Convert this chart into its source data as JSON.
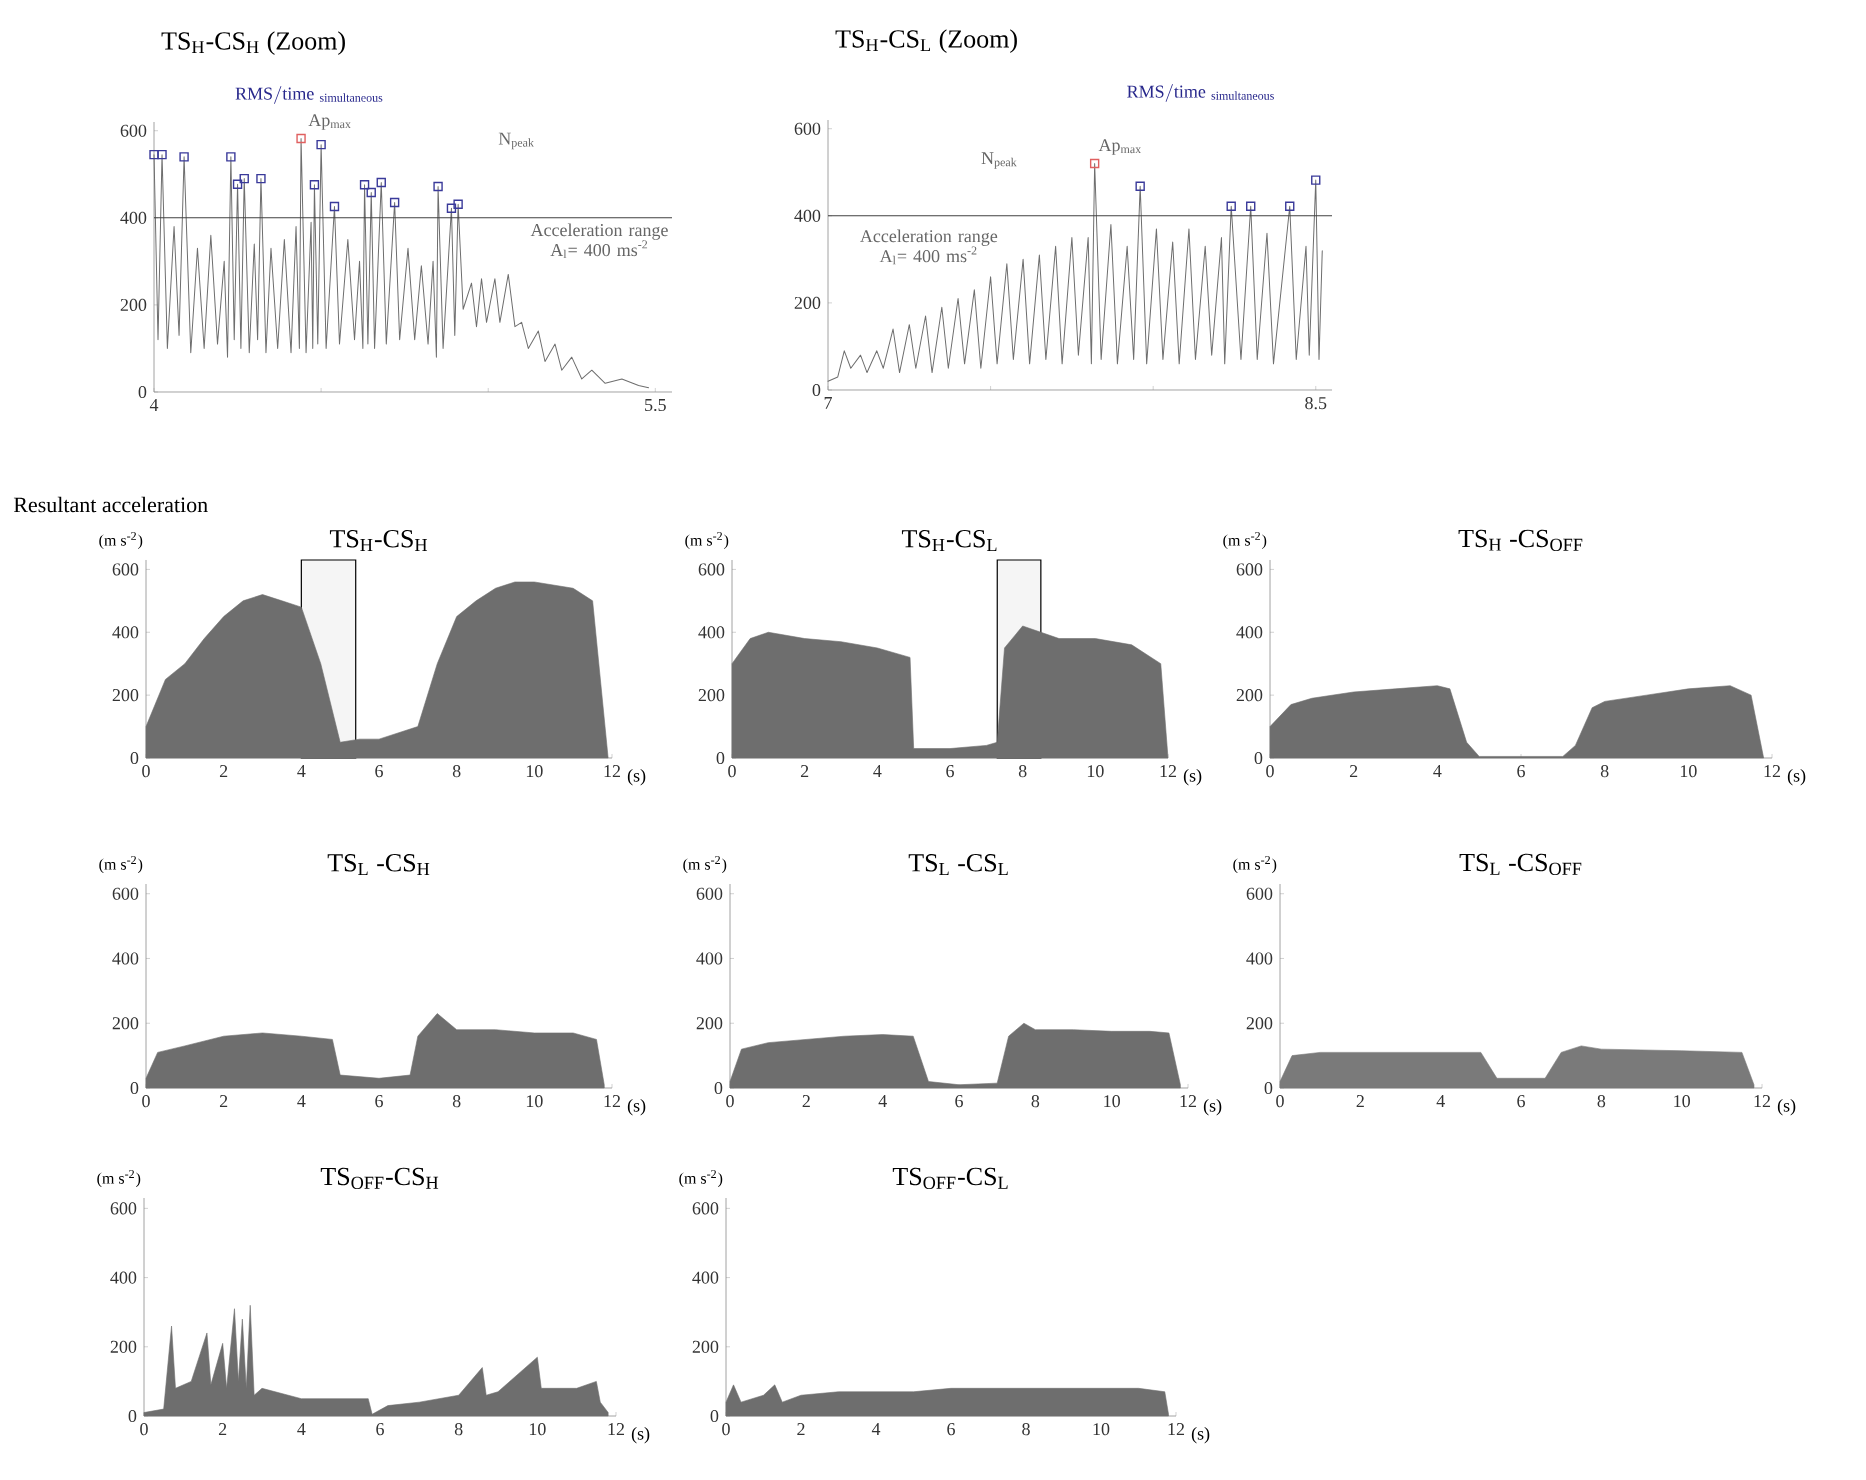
{
  "chart_data": [
    {
      "type": "line",
      "title": "TS$_{H}$-CS$_{H}$ (Zoom)",
      "xlim": [
        4,
        5.55
      ],
      "ylim": [
        0,
        620
      ],
      "xticks": [
        4,
        {
          "value": 4.5,
          "label": null
        },
        {
          "value": 5,
          "label": null
        },
        5.5
      ],
      "yticks": [
        0,
        200,
        400,
        600
      ],
      "ref_lines": [
        {
          "axis": "y",
          "value": 400,
          "color": "#404040"
        }
      ],
      "annotations": [
        "\\mathrm{RMS/time}\\;_{\\mathrm{simultaneous}}",
        "Ap$_{max}$",
        "N$_{peak}$",
        "Acceleration range A$_{l}$= 400 ms$^{-2}$"
      ],
      "series": [
        {
          "type": "line",
          "color": "#6e6e6e",
          "x": [
            4.0,
            4.012,
            4.024,
            4.04,
            4.06,
            4.075,
            4.09,
            4.11,
            4.13,
            4.15,
            4.17,
            4.19,
            4.21,
            4.22,
            4.23,
            4.24,
            4.25,
            4.26,
            4.27,
            4.285,
            4.3,
            4.31,
            4.32,
            4.335,
            4.35,
            4.37,
            4.39,
            4.41,
            4.425,
            4.435,
            4.44,
            4.455,
            4.47,
            4.475,
            4.48,
            4.49,
            4.5,
            4.515,
            4.54,
            4.555,
            4.58,
            4.6,
            4.615,
            4.625,
            4.63,
            4.64,
            4.65,
            4.66,
            4.68,
            4.695,
            4.72,
            4.735,
            4.76,
            4.78,
            4.8,
            4.82,
            4.835,
            4.845,
            4.85,
            4.865,
            4.89,
            4.9,
            4.91,
            4.925,
            4.95,
            4.965,
            4.98,
            4.995,
            5.02,
            5.035,
            5.06,
            5.08,
            5.1,
            5.12,
            5.15,
            5.17,
            5.2,
            5.22,
            5.25,
            5.28,
            5.31,
            5.35,
            5.4,
            5.45,
            5.48
          ],
          "values": [
            545,
            120,
            545,
            100,
            380,
            130,
            540,
            90,
            330,
            100,
            360,
            110,
            300,
            80,
            540,
            120,
            477,
            100,
            490,
            90,
            340,
            120,
            490,
            90,
            330,
            100,
            350,
            90,
            380,
            100,
            582,
            90,
            390,
            100,
            476,
            110,
            568,
            100,
            426,
            110,
            350,
            120,
            300,
            100,
            476,
            110,
            458,
            100,
            481,
            110,
            435,
            120,
            330,
            120,
            290,
            110,
            300,
            80,
            472,
            100,
            422,
            130,
            431,
            190,
            250,
            150,
            260,
            160,
            260,
            160,
            270,
            150,
            160,
            100,
            140,
            70,
            110,
            50,
            80,
            30,
            50,
            20,
            30,
            15,
            10
          ]
        },
        {
          "type": "scatter",
          "marker": "square",
          "color": "#3a3a9a",
          "x": [
            4.0,
            4.024,
            4.09,
            4.23,
            4.25,
            4.27,
            4.32,
            4.48,
            4.5,
            4.54,
            4.63,
            4.65,
            4.68,
            4.72,
            4.85,
            4.89,
            4.91
          ],
          "values": [
            545,
            545,
            540,
            540,
            477,
            490,
            490,
            476,
            568,
            426,
            476,
            458,
            481,
            435,
            472,
            422,
            431
          ]
        },
        {
          "type": "scatter",
          "marker": "square",
          "color": "#e06060",
          "x": [
            4.44
          ],
          "values": [
            582
          ]
        }
      ]
    },
    {
      "type": "line",
      "title": "TS$_{H}$-CS$_{L}$ (Zoom)",
      "xlim": [
        7,
        8.55
      ],
      "ylim": [
        0,
        620
      ],
      "xticks": [
        7,
        {
          "value": 7.5,
          "label": null
        },
        {
          "value": 8,
          "label": null
        },
        8.5
      ],
      "yticks": [
        0,
        200,
        400,
        600
      ],
      "ref_lines": [
        {
          "axis": "y",
          "value": 400,
          "color": "#404040"
        }
      ],
      "annotations": [
        "\\mathrm{RMS/time}\\;_{\\mathrm{simultaneous}}",
        "Ap$_{max}$",
        "N$_{peak}$",
        "Acceleration range A$_{l}$= 400 ms$^{-2}$"
      ],
      "series": [
        {
          "type": "line",
          "color": "#6e6e6e",
          "x": [
            7.0,
            7.03,
            7.05,
            7.07,
            7.1,
            7.12,
            7.15,
            7.17,
            7.2,
            7.22,
            7.25,
            7.27,
            7.3,
            7.32,
            7.35,
            7.37,
            7.4,
            7.42,
            7.45,
            7.47,
            7.5,
            7.52,
            7.55,
            7.57,
            7.6,
            7.62,
            7.65,
            7.67,
            7.7,
            7.72,
            7.75,
            7.77,
            7.8,
            7.81,
            7.82,
            7.84,
            7.87,
            7.89,
            7.92,
            7.94,
            7.96,
            7.98,
            8.01,
            8.03,
            8.06,
            8.08,
            8.11,
            8.13,
            8.16,
            8.18,
            8.21,
            8.22,
            8.24,
            8.27,
            8.3,
            8.32,
            8.35,
            8.37,
            8.42,
            8.44,
            8.47,
            8.48,
            8.5,
            8.51,
            8.52
          ],
          "values": [
            20,
            30,
            90,
            50,
            80,
            40,
            90,
            50,
            140,
            40,
            150,
            50,
            170,
            40,
            190,
            50,
            210,
            60,
            230,
            50,
            260,
            60,
            290,
            70,
            300,
            60,
            310,
            70,
            330,
            60,
            350,
            80,
            350,
            60,
            520,
            70,
            380,
            60,
            330,
            70,
            468,
            60,
            370,
            70,
            340,
            60,
            370,
            70,
            330,
            80,
            350,
            60,
            422,
            70,
            422,
            70,
            360,
            60,
            422,
            70,
            330,
            80,
            482,
            70,
            320
          ]
        },
        {
          "type": "scatter",
          "marker": "square",
          "color": "#3a3a9a",
          "x": [
            7.96,
            8.24,
            8.3,
            8.42,
            8.5
          ],
          "values": [
            468,
            422,
            422,
            422,
            482
          ]
        },
        {
          "type": "scatter",
          "marker": "square",
          "color": "#e06060",
          "x": [
            7.82
          ],
          "values": [
            520
          ]
        }
      ]
    },
    {
      "type": "area",
      "title": "TS$_{H}$-CS$_{H}$",
      "xlabel": "(s)",
      "ylabel": "(m s$^{-2}$)",
      "xlim": [
        0,
        12
      ],
      "ylim": [
        0,
        630
      ],
      "xticks": [
        0,
        2,
        4,
        6,
        8,
        10,
        12
      ],
      "yticks": [
        0,
        200,
        400,
        600
      ],
      "annotations": [
        "Resultant acceleration"
      ],
      "bands": [
        {
          "axis": "x",
          "from": 4,
          "to": 5.4,
          "color": "#000000"
        }
      ],
      "series": [
        {
          "color": "#6e6e6e",
          "x": [
            0,
            0.5,
            1,
            1.5,
            2,
            2.5,
            3,
            3.5,
            4,
            4.5,
            5,
            5.5,
            6,
            6.5,
            7,
            7.5,
            8,
            8.5,
            9,
            9.5,
            10,
            10.5,
            11,
            11.5,
            11.9
          ],
          "values": [
            100,
            250,
            300,
            380,
            450,
            500,
            520,
            500,
            480,
            300,
            50,
            60,
            60,
            80,
            100,
            300,
            450,
            500,
            540,
            560,
            560,
            550,
            540,
            500,
            0
          ]
        }
      ]
    },
    {
      "type": "area",
      "title": "TS$_{H}$-CS$_{L}$",
      "xlabel": "(s)",
      "ylabel": "(m s$^{-2}$)",
      "xlim": [
        0,
        12
      ],
      "ylim": [
        0,
        630
      ],
      "xticks": [
        0,
        2,
        4,
        6,
        8,
        10,
        12
      ],
      "yticks": [
        0,
        200,
        400,
        600
      ],
      "bands": [
        {
          "axis": "x",
          "from": 7.3,
          "to": 8.5,
          "color": "#000000"
        }
      ],
      "series": [
        {
          "color": "#6e6e6e",
          "x": [
            0,
            0.5,
            1,
            2,
            3,
            4,
            4.9,
            5,
            6,
            7,
            7.3,
            7.5,
            8,
            8.5,
            9,
            10,
            11,
            11.8,
            12
          ],
          "values": [
            300,
            380,
            400,
            380,
            370,
            350,
            320,
            30,
            30,
            40,
            50,
            350,
            420,
            400,
            380,
            380,
            360,
            300,
            0
          ]
        }
      ]
    },
    {
      "type": "area",
      "title": "TS$_{H}$ -CS$_{OFF}$",
      "xlabel": "(s)",
      "ylabel": "(m s$^{-2}$)",
      "xlim": [
        0,
        12
      ],
      "ylim": [
        0,
        630
      ],
      "xticks": [
        0,
        2,
        4,
        6,
        8,
        10,
        12
      ],
      "yticks": [
        0,
        200,
        400,
        600
      ],
      "series": [
        {
          "color": "#6e6e6e",
          "x": [
            0,
            0.5,
            1,
            2,
            3,
            4,
            4.3,
            4.7,
            5,
            6,
            7,
            7.3,
            7.7,
            8,
            9,
            10,
            11,
            11.5,
            11.8
          ],
          "values": [
            100,
            170,
            190,
            210,
            220,
            230,
            220,
            50,
            5,
            5,
            5,
            40,
            160,
            180,
            200,
            220,
            230,
            200,
            0
          ]
        }
      ]
    },
    {
      "type": "area",
      "title": "TS$_{L}$ -CS$_{H}$",
      "xlabel": "(s)",
      "ylabel": "(m s$^{-2}$)",
      "xlim": [
        0,
        12
      ],
      "ylim": [
        0,
        630
      ],
      "xticks": [
        0,
        2,
        4,
        6,
        8,
        10,
        12
      ],
      "yticks": [
        0,
        200,
        400,
        600
      ],
      "series": [
        {
          "color": "#6e6e6e",
          "x": [
            0,
            0.3,
            1,
            2,
            3,
            4,
            4.8,
            5,
            6,
            6.8,
            7,
            7.5,
            8,
            9,
            10,
            11,
            11.6,
            11.8
          ],
          "values": [
            30,
            110,
            130,
            160,
            170,
            160,
            150,
            40,
            30,
            40,
            160,
            230,
            180,
            180,
            170,
            170,
            150,
            10
          ]
        }
      ]
    },
    {
      "type": "area",
      "title": "TS$_{L}$ -CS$_{L}$",
      "xlabel": "(s)",
      "ylabel": "(m s$^{-2}$)",
      "xlim": [
        0,
        12
      ],
      "ylim": [
        0,
        630
      ],
      "xticks": [
        0,
        2,
        4,
        6,
        8,
        10,
        12
      ],
      "yticks": [
        0,
        200,
        400,
        600
      ],
      "series": [
        {
          "color": "#6e6e6e",
          "x": [
            0,
            0.3,
            1,
            2,
            3,
            4,
            4.8,
            5.2,
            6,
            7,
            7.3,
            7.7,
            8,
            9,
            10,
            11,
            11.5,
            11.8
          ],
          "values": [
            20,
            120,
            140,
            150,
            160,
            165,
            160,
            20,
            10,
            15,
            160,
            200,
            180,
            180,
            175,
            175,
            170,
            10
          ]
        }
      ]
    },
    {
      "type": "area",
      "title": "TS$_{L}$ -CS$_{OFF}$",
      "xlabel": "(s)",
      "ylabel": "(m s$^{-2}$)",
      "xlim": [
        0,
        12
      ],
      "ylim": [
        0,
        630
      ],
      "xticks": [
        0,
        2,
        4,
        6,
        8,
        10,
        12
      ],
      "yticks": [
        0,
        200,
        400,
        600
      ],
      "series": [
        {
          "color": "#7a7a7a",
          "x": [
            0,
            0.3,
            1,
            3,
            5,
            5.4,
            6.6,
            7,
            7.5,
            8,
            10,
            11.5,
            11.8
          ],
          "values": [
            20,
            100,
            110,
            110,
            110,
            30,
            30,
            110,
            130,
            120,
            115,
            110,
            10
          ]
        }
      ]
    },
    {
      "type": "area",
      "title": "TS$_{OFF}$-CS$_{H}$",
      "xlabel": "(s)",
      "ylabel": "(m s$^{-2}$)",
      "xlim": [
        0,
        12
      ],
      "ylim": [
        0,
        630
      ],
      "xticks": [
        0,
        2,
        4,
        6,
        8,
        10,
        12
      ],
      "yticks": [
        0,
        200,
        400,
        600
      ],
      "series": [
        {
          "color": "#6e6e6e",
          "x": [
            0,
            0.5,
            0.7,
            0.8,
            1.2,
            1.6,
            1.7,
            2.0,
            2.1,
            2.3,
            2.4,
            2.5,
            2.6,
            2.7,
            2.8,
            3,
            4,
            5,
            5.7,
            5.8,
            6.2,
            7,
            8,
            8.6,
            8.7,
            9,
            10,
            10.1,
            11,
            11.5,
            11.6,
            11.8
          ],
          "values": [
            10,
            20,
            260,
            80,
            100,
            240,
            90,
            210,
            80,
            310,
            100,
            280,
            80,
            320,
            60,
            80,
            50,
            50,
            50,
            5,
            30,
            40,
            60,
            140,
            60,
            70,
            170,
            80,
            80,
            100,
            40,
            10
          ]
        }
      ]
    },
    {
      "type": "area",
      "title": "TS$_{OFF}$-CS$_{L}$",
      "xlabel": "(s)",
      "ylabel": "(m s$^{-2}$)",
      "xlim": [
        0,
        12
      ],
      "ylim": [
        0,
        630
      ],
      "xticks": [
        0,
        2,
        4,
        6,
        8,
        10,
        12
      ],
      "yticks": [
        0,
        200,
        400,
        600
      ],
      "series": [
        {
          "color": "#6e6e6e",
          "x": [
            0,
            0.2,
            0.4,
            1,
            1.3,
            1.5,
            2,
            3,
            4,
            5,
            6,
            7,
            8,
            9,
            10,
            11,
            11.7,
            11.8
          ],
          "values": [
            40,
            90,
            40,
            60,
            90,
            40,
            60,
            70,
            70,
            70,
            80,
            80,
            80,
            80,
            80,
            80,
            70,
            5
          ]
        }
      ]
    }
  ]
}
